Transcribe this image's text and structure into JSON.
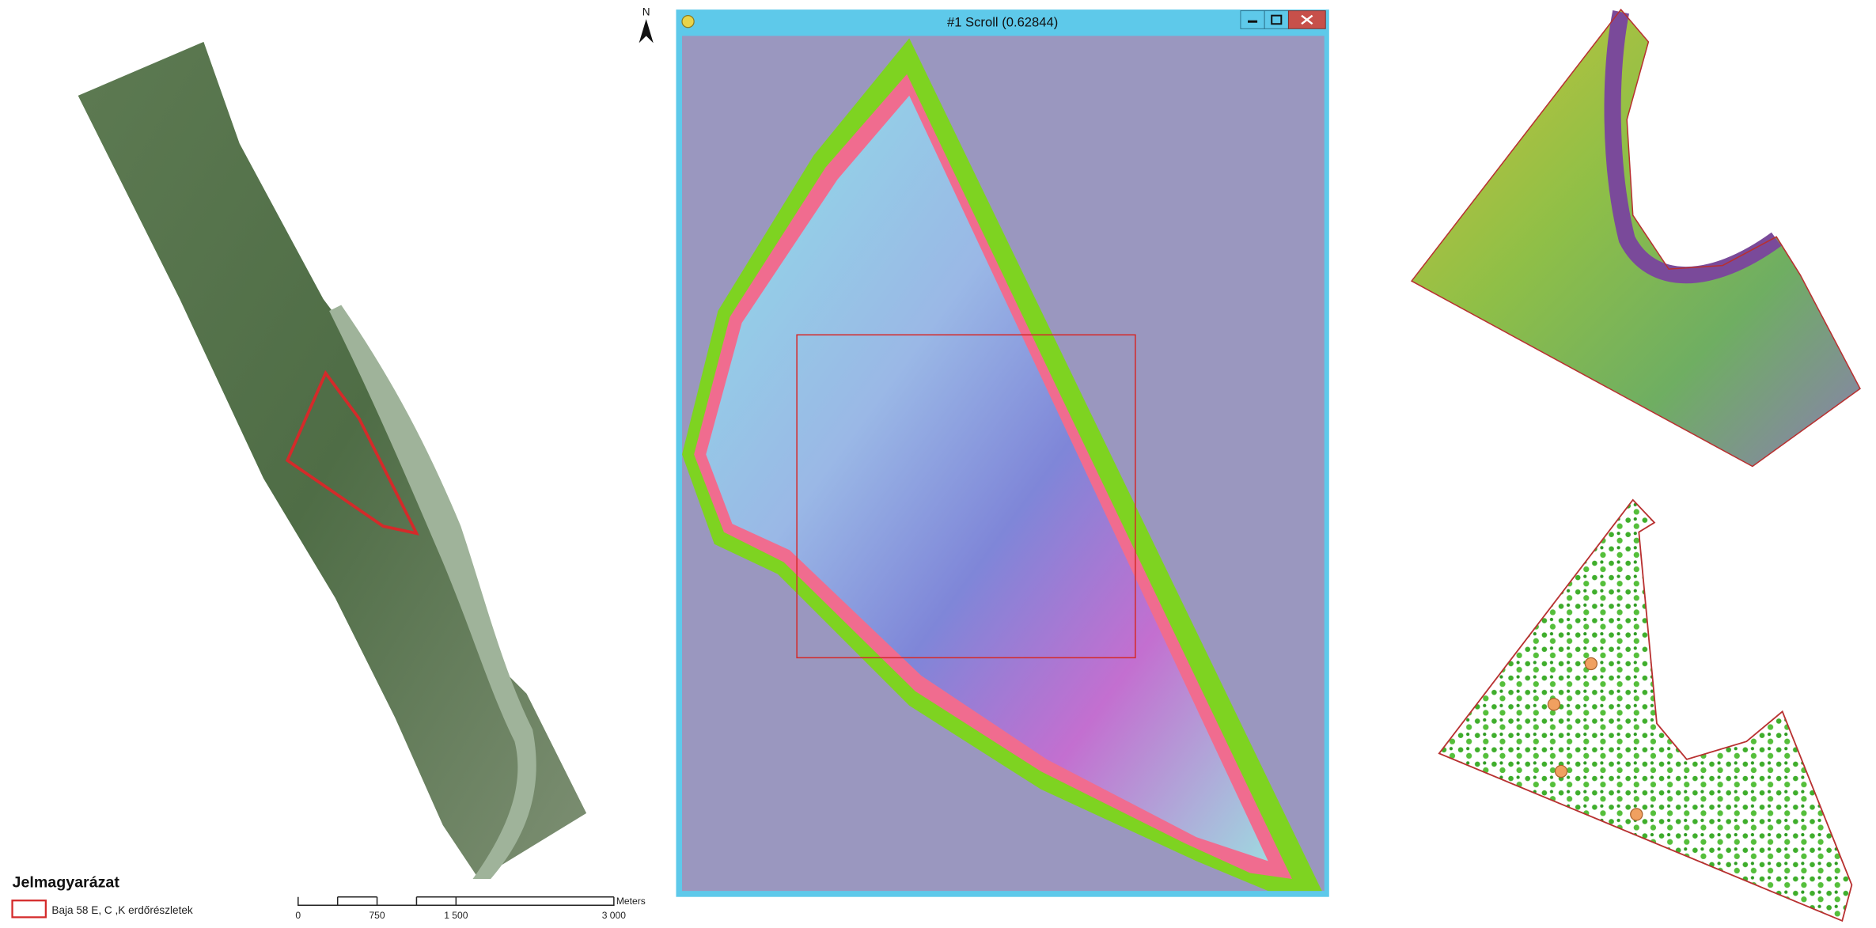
{
  "left_map": {
    "north_arrow": "N",
    "legend": {
      "title": "Jelmagyarázat",
      "items": [
        "Baja 58 E, C ,K erdőrészletek"
      ]
    },
    "scale_bar": {
      "labels": [
        "0",
        "750",
        "1 500",
        "3 000"
      ],
      "unit": "Meters"
    }
  },
  "window": {
    "title": "#1 Scroll (0.62844)"
  }
}
